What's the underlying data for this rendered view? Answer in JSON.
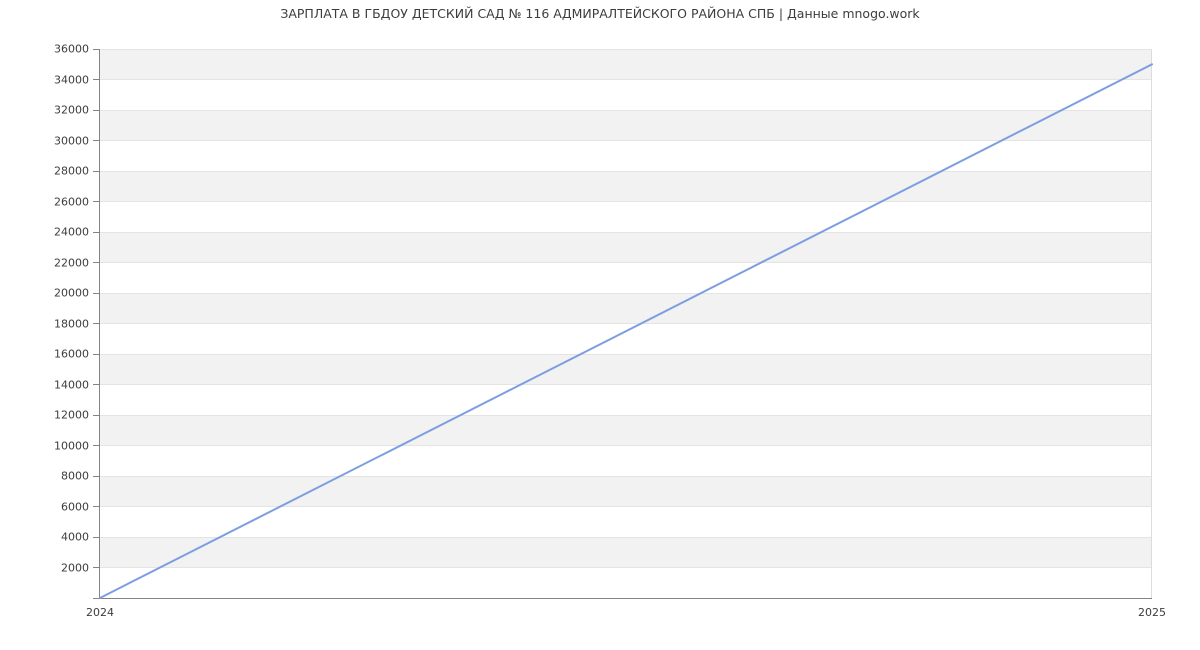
{
  "chart_data": {
    "type": "line",
    "title": "ЗАРПЛАТА В ГБДОУ ДЕТСКИЙ САД № 116 АДМИРАЛТЕЙСКОГО РАЙОНА СПБ | Данные mnogo.work",
    "x": [
      2024,
      2025
    ],
    "x_tick_labels": [
      "2024",
      "2025"
    ],
    "series": [
      {
        "name": "",
        "values": [
          0,
          35000
        ]
      }
    ],
    "xlabel": "",
    "ylabel": "",
    "xlim": [
      2024,
      2025
    ],
    "ylim": [
      0,
      36000
    ],
    "y_tick_step": 2000,
    "y_tick_labels": [
      "2000",
      "4000",
      "6000",
      "8000",
      "10000",
      "12000",
      "14000",
      "16000",
      "18000",
      "20000",
      "22000",
      "24000",
      "26000",
      "28000",
      "30000",
      "32000",
      "34000",
      "36000"
    ],
    "legend": "none",
    "grid": "horizontal-gridlines-with-alternating-stripe-bands",
    "colors": {
      "line": "#7d9ee1",
      "band": "#f2f2f2",
      "gridline": "#e4e4e4",
      "right_border": "#dcdcdc",
      "axis": "#848484",
      "text": "#3d3d3d",
      "background": "#ffffff"
    }
  }
}
